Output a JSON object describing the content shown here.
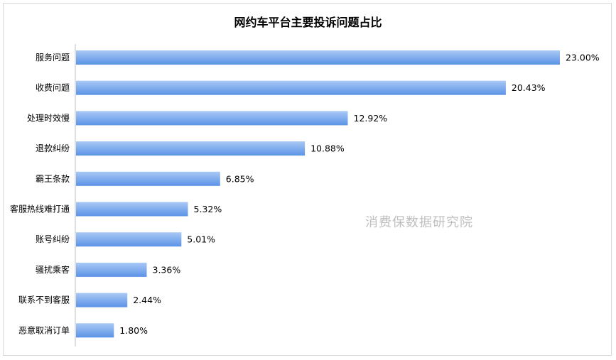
{
  "chart_data": {
    "type": "bar",
    "orientation": "horizontal",
    "title": "网约车平台主要投诉问题占比",
    "categories": [
      "服务问题",
      "收费问题",
      "处理时效慢",
      "退款纠纷",
      "霸王条款",
      "客服热线难打通",
      "账号纠纷",
      "骚扰乘客",
      "联系不到客服",
      "恶意取消订单"
    ],
    "values": [
      23.0,
      20.43,
      12.92,
      10.88,
      6.85,
      5.32,
      5.01,
      3.36,
      2.44,
      1.8
    ],
    "value_labels": [
      "23.00%",
      "20.43%",
      "12.92%",
      "10.88%",
      "6.85%",
      "5.32%",
      "5.01%",
      "3.36%",
      "2.44%",
      "1.80%"
    ],
    "xlabel": "",
    "ylabel": "",
    "xlim": [
      0,
      23
    ],
    "grid": false,
    "legend": "none",
    "bar_color_top": "#a9c8f5",
    "bar_color_bottom": "#5b93e6"
  },
  "watermark": "消费保数据研究院"
}
